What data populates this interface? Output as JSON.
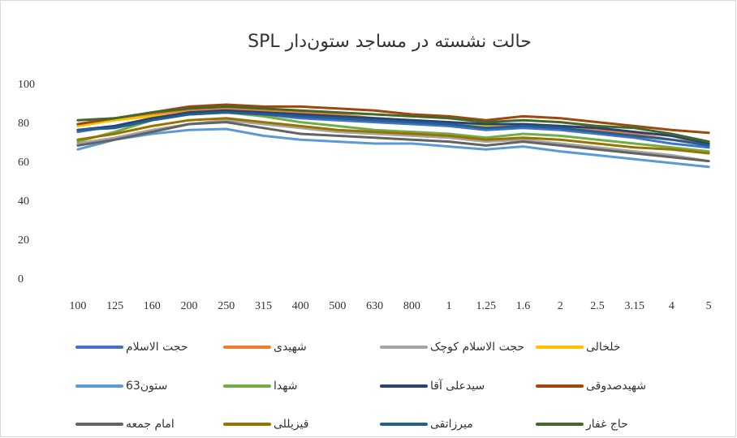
{
  "chart_data": {
    "type": "line",
    "title": "SPL حالت نشسته در مساجد ستون‌دار",
    "categories": [
      "100",
      "125",
      "160",
      "200",
      "250",
      "315",
      "400",
      "500",
      "630",
      "800",
      "1",
      "1.25",
      "1.6",
      "2",
      "2.5",
      "3.15",
      "4",
      "5"
    ],
    "ylim": [
      0,
      100
    ],
    "yticks": [
      0,
      20,
      40,
      60,
      80,
      100
    ],
    "grid": false,
    "series": [
      {
        "name": "حجت الاسلام",
        "color": "#4472c4",
        "values": [
          76,
          79,
          83,
          85,
          86,
          85,
          83,
          82,
          81,
          80,
          79,
          77,
          78,
          77,
          75,
          73,
          70,
          68
        ]
      },
      {
        "name": "شهیدی",
        "color": "#ed7d31",
        "values": [
          80,
          82,
          85,
          87,
          88,
          87,
          86,
          85,
          83,
          82,
          81,
          79,
          80,
          79,
          77,
          75,
          72,
          70
        ]
      },
      {
        "name": "حجت الاسلام کوچک",
        "color": "#a5a5a5",
        "values": [
          70,
          73,
          77,
          80,
          82,
          80,
          78,
          76,
          75,
          74,
          73,
          71,
          72,
          70,
          68,
          66,
          64,
          61
        ]
      },
      {
        "name": "خلخالی",
        "color": "#ffc000",
        "values": [
          79,
          82,
          84,
          86,
          87,
          86,
          85,
          84,
          83,
          82,
          81,
          79,
          80,
          79,
          78,
          76,
          74,
          71
        ]
      },
      {
        "name": "63ستون",
        "color": "#5b9bd5",
        "values": [
          67,
          72,
          75,
          77,
          77.5,
          74,
          72,
          71,
          70,
          70,
          68.5,
          67,
          68.5,
          66,
          64,
          62,
          60,
          58
        ]
      },
      {
        "name": "شهدا",
        "color": "#70ad47",
        "values": [
          71,
          76,
          82,
          85,
          86,
          84,
          81,
          79,
          77,
          76,
          75,
          73,
          75,
          74,
          72,
          70,
          68,
          66
        ]
      },
      {
        "name": "سیدعلی آقا",
        "color": "#264478",
        "values": [
          77,
          79,
          83,
          86,
          87,
          86,
          85,
          84,
          83,
          82,
          81,
          80,
          80,
          79,
          78,
          76,
          74,
          70
        ]
      },
      {
        "name": "شهیدصدوقی",
        "color": "#9e480e",
        "values": [
          80,
          83,
          86,
          89,
          90,
          89,
          89,
          88,
          87,
          85,
          84,
          82,
          84,
          83,
          81,
          79,
          77,
          75.5
        ]
      },
      {
        "name": "امام جمعه",
        "color": "#636363",
        "values": [
          69,
          72,
          76,
          80,
          81,
          78,
          75,
          74,
          73,
          72,
          71,
          69,
          71,
          69,
          67,
          65,
          63,
          61
        ]
      },
      {
        "name": "قیزیللی",
        "color": "#997300",
        "values": [
          72,
          75,
          79,
          82,
          83,
          81,
          79,
          77,
          76,
          75,
          74,
          72,
          73,
          72,
          70,
          68,
          67,
          65
        ]
      },
      {
        "name": "میرزاتقی",
        "color": "#255e91",
        "values": [
          77,
          78,
          82,
          85,
          86,
          85,
          84,
          83,
          82,
          81,
          80,
          78,
          79,
          78,
          76,
          74,
          72,
          69
        ]
      },
      {
        "name": "حاج غفار",
        "color": "#43682b",
        "values": [
          82,
          83,
          86,
          88,
          89,
          88,
          87,
          86,
          85,
          84,
          83,
          81,
          82,
          81,
          79,
          78,
          75,
          71
        ]
      }
    ]
  }
}
